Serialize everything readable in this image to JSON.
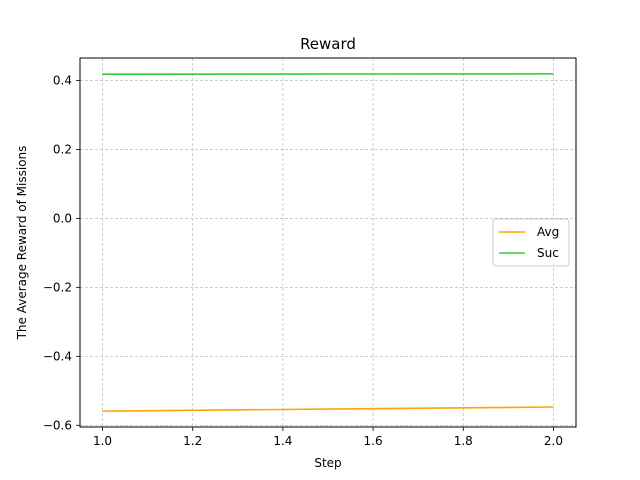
{
  "chart_data": {
    "type": "line",
    "title": "Reward",
    "xlabel": "Step",
    "ylabel": "The Average Reward of Missions",
    "xlim": [
      0.95,
      2.05
    ],
    "ylim": [
      -0.605,
      0.465
    ],
    "x_ticks": [
      1.0,
      1.2,
      1.4,
      1.6,
      1.8,
      2.0
    ],
    "x_tick_labels": [
      "1.0",
      "1.2",
      "1.4",
      "1.6",
      "1.8",
      "2.0"
    ],
    "y_ticks": [
      -0.6,
      -0.4,
      -0.2,
      0.0,
      0.2,
      0.4
    ],
    "y_tick_labels": [
      "−0.6",
      "−0.4",
      "−0.2",
      "0.0",
      "0.2",
      "0.4"
    ],
    "grid": true,
    "legend_position": "center-right",
    "series": [
      {
        "name": "Avg",
        "color": "#ffa500",
        "x": [
          1.0,
          2.0
        ],
        "y": [
          -0.559,
          -0.547
        ]
      },
      {
        "name": "Suc",
        "color": "#32cd32",
        "x": [
          1.0,
          2.0
        ],
        "y": [
          0.418,
          0.419
        ]
      }
    ]
  }
}
